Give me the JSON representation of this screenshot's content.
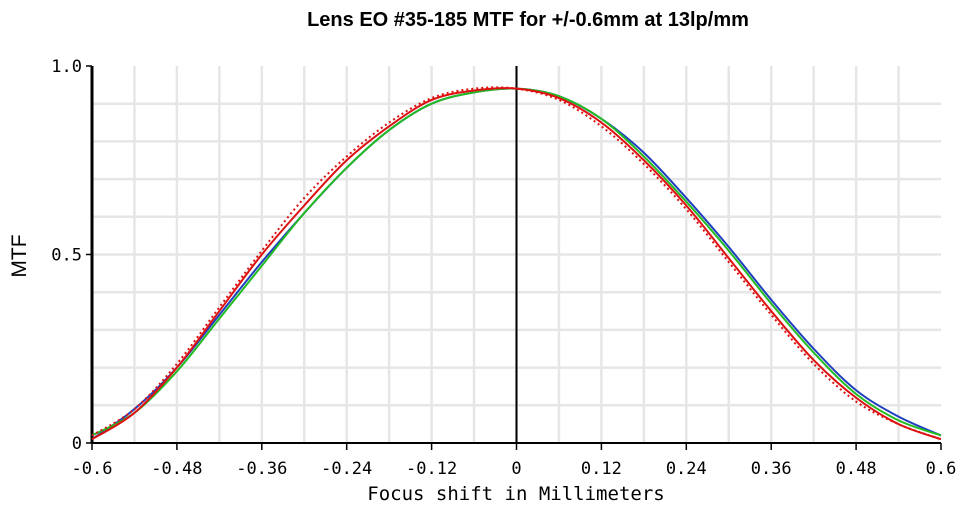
{
  "chart_data": {
    "type": "line",
    "title": "Lens EO #35-185 MTF for +/-0.6mm at 13lp/mm",
    "xlabel": "Focus shift in Millimeters",
    "ylabel": "MTF",
    "xlim": [
      -0.6,
      0.6
    ],
    "ylim": [
      0,
      1
    ],
    "xticks": [
      "-0.6",
      "-0.48",
      "-0.36",
      "-0.24",
      "-0.12",
      "0",
      "0.12",
      "0.24",
      "0.36",
      "0.48",
      "0.6"
    ],
    "yticks": [
      "0",
      "0.5",
      "1.0"
    ],
    "grid": true,
    "series": [
      {
        "color": "#1f3fbf",
        "dash": "solid",
        "x": [
          -0.6,
          -0.54,
          -0.48,
          -0.42,
          -0.36,
          -0.3,
          -0.24,
          -0.18,
          -0.12,
          -0.06,
          0.0,
          0.06,
          0.12,
          0.18,
          0.24,
          0.3,
          0.36,
          0.42,
          0.48,
          0.54,
          0.6
        ],
        "y": [
          0.01,
          0.09,
          0.2,
          0.34,
          0.48,
          0.61,
          0.73,
          0.83,
          0.9,
          0.93,
          0.94,
          0.92,
          0.86,
          0.77,
          0.65,
          0.52,
          0.38,
          0.25,
          0.14,
          0.07,
          0.02
        ]
      },
      {
        "color": "#22bb22",
        "dash": "solid",
        "x": [
          -0.6,
          -0.54,
          -0.48,
          -0.42,
          -0.36,
          -0.3,
          -0.24,
          -0.18,
          -0.12,
          -0.06,
          0.0,
          0.06,
          0.12,
          0.18,
          0.24,
          0.3,
          0.36,
          0.42,
          0.48,
          0.54,
          0.6
        ],
        "y": [
          0.02,
          0.08,
          0.19,
          0.33,
          0.47,
          0.61,
          0.73,
          0.83,
          0.9,
          0.93,
          0.94,
          0.92,
          0.86,
          0.76,
          0.64,
          0.51,
          0.37,
          0.24,
          0.13,
          0.06,
          0.02
        ]
      },
      {
        "color": "#dd1111",
        "dash": "solid",
        "x": [
          -0.6,
          -0.54,
          -0.48,
          -0.42,
          -0.36,
          -0.3,
          -0.24,
          -0.18,
          -0.12,
          -0.06,
          0.0,
          0.06,
          0.12,
          0.18,
          0.24,
          0.3,
          0.36,
          0.42,
          0.48,
          0.54,
          0.6
        ],
        "y": [
          0.01,
          0.08,
          0.2,
          0.35,
          0.5,
          0.63,
          0.75,
          0.84,
          0.91,
          0.935,
          0.94,
          0.915,
          0.85,
          0.75,
          0.63,
          0.49,
          0.35,
          0.22,
          0.12,
          0.05,
          0.01
        ]
      },
      {
        "color": "#dd1111",
        "dash": "dotted",
        "x": [
          -0.6,
          -0.54,
          -0.48,
          -0.42,
          -0.36,
          -0.3,
          -0.24,
          -0.18,
          -0.12,
          -0.06,
          0.0,
          0.06,
          0.12,
          0.18,
          0.24,
          0.3,
          0.36,
          0.42,
          0.48,
          0.54,
          0.6
        ],
        "y": [
          0.02,
          0.09,
          0.21,
          0.36,
          0.51,
          0.65,
          0.76,
          0.85,
          0.915,
          0.94,
          0.94,
          0.91,
          0.84,
          0.74,
          0.62,
          0.48,
          0.34,
          0.21,
          0.11,
          0.05,
          0.01
        ]
      }
    ]
  }
}
